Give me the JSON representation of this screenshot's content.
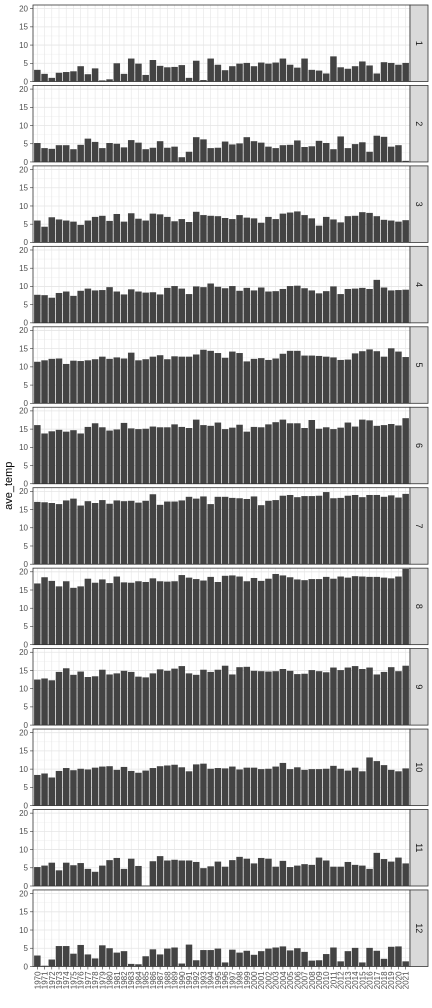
{
  "chart_data": {
    "type": "bar",
    "layout": "facet_grid rows by month",
    "ylabel": "ave_temp",
    "xlabel": "",
    "ylim": [
      0,
      21
    ],
    "y_ticks": [
      0,
      5,
      10,
      15,
      20
    ],
    "years": [
      1970,
      1971,
      1972,
      1973,
      1974,
      1975,
      1976,
      1977,
      1978,
      1979,
      1980,
      1981,
      1982,
      1983,
      1984,
      1985,
      1986,
      1987,
      1988,
      1989,
      1990,
      1991,
      1992,
      1993,
      1994,
      1995,
      1996,
      1997,
      1998,
      1999,
      2000,
      2001,
      2002,
      2003,
      2004,
      2005,
      2006,
      2007,
      2008,
      2009,
      2010,
      2011,
      2012,
      2013,
      2014,
      2015,
      2016,
      2017,
      2018,
      2019,
      2020,
      2021
    ],
    "x_tick_labels": [
      "1970",
      "1972",
      "1974",
      "1976",
      "1978",
      "1980",
      "1982",
      "1984",
      "1986",
      "1988",
      "1990",
      "1992",
      "1994",
      "1996",
      "1998",
      "2000",
      "2002",
      "2004",
      "2006",
      "2008",
      "2010",
      "2012",
      "2014",
      "2016",
      "2018",
      "2020",
      "1971",
      "1973",
      "1975",
      "1977",
      "1979",
      "1981",
      "1983",
      "1985",
      "1987",
      "1989",
      "1991",
      "1993",
      "1995",
      "1997",
      "1999",
      "2001",
      "2003",
      "2005",
      "2007",
      "2009",
      "2011",
      "2013",
      "2015",
      "2017",
      "2019",
      "2021"
    ],
    "grid": true,
    "panels": [
      {
        "label": "1",
        "values": [
          3.2,
          2.1,
          1.0,
          2.4,
          2.6,
          2.8,
          4.2,
          2.0,
          3.6,
          0.3,
          0.6,
          5.0,
          2.1,
          6.3,
          4.9,
          1.8,
          5.9,
          4.3,
          3.9,
          4.0,
          4.5,
          1.0,
          5.7,
          0.4,
          6.3,
          4.6,
          3.1,
          4.2,
          4.9,
          5.1,
          4.2,
          5.2,
          4.9,
          5.2,
          6.3,
          4.6,
          3.8,
          6.3,
          3.2,
          3.0,
          2.2,
          6.9,
          3.9,
          3.5,
          4.2,
          5.5,
          4.4,
          2.2,
          5.3,
          5.1,
          4.6,
          5.1
        ]
      },
      {
        "label": "2",
        "values": [
          5.2,
          3.8,
          3.6,
          4.6,
          4.6,
          3.5,
          4.7,
          6.4,
          5.5,
          3.8,
          5.2,
          5.0,
          4.0,
          6.0,
          5.3,
          3.5,
          3.9,
          5.7,
          3.9,
          4.2,
          1.3,
          2.8,
          6.8,
          6.2,
          3.8,
          3.9,
          5.6,
          4.8,
          5.1,
          6.8,
          5.7,
          5.3,
          4.2,
          3.8,
          4.6,
          4.7,
          5.9,
          4.1,
          4.3,
          5.8,
          5.2,
          3.5,
          7.0,
          3.8,
          4.9,
          5.4,
          2.8,
          7.2,
          6.9,
          4.2,
          4.6,
          0.3
        ]
      },
      {
        "label": "3",
        "values": [
          6.0,
          4.3,
          6.9,
          6.3,
          6.0,
          5.7,
          4.8,
          6.0,
          7.0,
          7.3,
          5.9,
          7.8,
          5.7,
          8.0,
          6.5,
          6.0,
          7.9,
          7.7,
          7.0,
          5.8,
          6.4,
          5.6,
          8.4,
          7.5,
          7.3,
          7.2,
          6.7,
          6.4,
          7.5,
          6.8,
          6.6,
          5.4,
          7.0,
          6.4,
          7.9,
          8.2,
          8.5,
          7.5,
          6.6,
          4.6,
          7.0,
          6.3,
          5.5,
          7.2,
          7.3,
          8.3,
          8.1,
          7.2,
          6.2,
          6.0,
          5.7,
          6.1
        ]
      },
      {
        "label": "4",
        "values": [
          7.7,
          7.6,
          6.9,
          8.2,
          8.6,
          7.4,
          8.8,
          9.4,
          8.9,
          9.0,
          9.8,
          8.6,
          7.8,
          9.2,
          8.6,
          8.3,
          8.4,
          7.8,
          9.6,
          10.1,
          9.4,
          7.9,
          10.0,
          9.8,
          10.8,
          9.9,
          9.5,
          10.1,
          8.8,
          9.6,
          8.9,
          9.7,
          8.6,
          8.7,
          9.3,
          10.1,
          10.2,
          9.5,
          8.9,
          8.1,
          8.7,
          10.0,
          7.9,
          9.3,
          9.4,
          9.6,
          9.3,
          11.8,
          9.7,
          8.9,
          9.0,
          9.1
        ]
      },
      {
        "label": "5",
        "values": [
          11.4,
          11.8,
          12.2,
          12.3,
          10.8,
          11.7,
          11.6,
          11.8,
          12.1,
          12.8,
          12.2,
          12.6,
          12.3,
          13.9,
          11.8,
          12.1,
          12.8,
          13.2,
          12.1,
          12.9,
          12.8,
          12.8,
          13.4,
          14.7,
          14.4,
          13.8,
          12.5,
          14.2,
          13.8,
          11.5,
          12.2,
          12.4,
          11.9,
          12.3,
          13.6,
          14.4,
          14.4,
          13.1,
          13.1,
          13.0,
          12.8,
          12.6,
          11.9,
          12.0,
          13.7,
          14.3,
          14.8,
          14.3,
          12.8,
          15.1,
          14.2,
          12.7
        ]
      },
      {
        "label": "6",
        "values": [
          16.1,
          13.8,
          14.4,
          14.8,
          14.3,
          14.7,
          13.8,
          15.6,
          16.6,
          15.5,
          14.6,
          14.9,
          16.7,
          15.2,
          15.0,
          15.1,
          15.7,
          15.5,
          15.5,
          16.3,
          15.6,
          15.3,
          17.6,
          16.1,
          15.9,
          16.8,
          15.0,
          15.4,
          16.2,
          14.3,
          15.6,
          15.5,
          16.3,
          16.9,
          17.6,
          16.6,
          16.6,
          15.3,
          17.5,
          15.1,
          15.5,
          15.0,
          15.4,
          16.8,
          15.7,
          17.6,
          17.4,
          15.9,
          16.1,
          16.4,
          16.0,
          18.0
        ]
      },
      {
        "label": "7",
        "values": [
          17.1,
          17.0,
          16.8,
          16.5,
          17.5,
          18.0,
          16.1,
          17.3,
          16.8,
          17.6,
          16.6,
          17.5,
          17.3,
          17.4,
          16.9,
          17.4,
          19.2,
          16.3,
          17.2,
          17.2,
          17.5,
          18.5,
          18.0,
          18.6,
          16.5,
          18.5,
          18.5,
          18.2,
          18.1,
          17.9,
          18.6,
          16.2,
          17.4,
          17.6,
          18.8,
          19.0,
          18.4,
          18.7,
          18.7,
          18.8,
          19.8,
          18.1,
          18.2,
          18.8,
          19.0,
          18.4,
          19.0,
          19.0,
          18.5,
          18.9,
          18.3,
          19.3
        ]
      },
      {
        "label": "8",
        "values": [
          16.8,
          18.5,
          17.5,
          16.0,
          17.4,
          15.6,
          16.0,
          18.1,
          17.0,
          17.9,
          16.9,
          18.7,
          17.1,
          17.0,
          17.4,
          17.2,
          18.2,
          17.4,
          17.3,
          17.4,
          19.1,
          18.4,
          18.0,
          17.6,
          18.6,
          17.2,
          18.9,
          19.0,
          18.7,
          17.4,
          18.3,
          17.5,
          18.1,
          19.4,
          19.0,
          18.5,
          17.9,
          17.7,
          18.0,
          18.0,
          18.6,
          18.1,
          18.7,
          18.4,
          18.8,
          18.7,
          18.6,
          18.6,
          18.4,
          18.2,
          18.7,
          20.8
        ]
      },
      {
        "label": "9",
        "values": [
          12.5,
          12.8,
          12.3,
          14.6,
          15.6,
          13.8,
          14.7,
          13.2,
          13.4,
          15.2,
          13.9,
          14.2,
          14.9,
          14.6,
          13.3,
          13.1,
          14.2,
          15.3,
          14.9,
          15.5,
          16.2,
          14.2,
          13.8,
          15.2,
          14.6,
          15.2,
          16.3,
          13.9,
          15.9,
          16.0,
          14.9,
          14.8,
          14.7,
          14.8,
          15.4,
          14.9,
          14.0,
          14.1,
          15.1,
          14.8,
          14.5,
          15.8,
          15.1,
          15.8,
          16.2,
          15.4,
          15.8,
          13.9,
          14.6,
          15.9,
          14.8,
          16.3
        ]
      },
      {
        "label": "10",
        "values": [
          8.4,
          8.8,
          7.7,
          9.5,
          10.3,
          9.7,
          10.1,
          9.9,
          10.4,
          10.7,
          10.8,
          9.8,
          10.6,
          9.5,
          9.0,
          9.6,
          10.3,
          10.8,
          11.0,
          11.2,
          10.5,
          9.4,
          11.3,
          11.5,
          10.1,
          10.3,
          10.2,
          10.7,
          9.9,
          10.4,
          10.4,
          10.0,
          10.1,
          10.7,
          11.7,
          10.0,
          10.5,
          9.8,
          10.0,
          10.0,
          10.1,
          10.9,
          10.1,
          9.6,
          10.4,
          9.4,
          13.2,
          12.2,
          11.1,
          9.8,
          9.4,
          10.2
        ]
      },
      {
        "label": "11",
        "values": [
          5.2,
          5.6,
          6.4,
          4.3,
          6.4,
          5.7,
          6.3,
          4.7,
          3.9,
          5.6,
          7.1,
          7.7,
          4.7,
          7.5,
          5.5,
          0.1,
          6.8,
          8.2,
          7.0,
          7.2,
          7.0,
          7.0,
          6.6,
          4.9,
          5.4,
          6.7,
          5.3,
          7.1,
          8.0,
          7.5,
          6.2,
          7.7,
          7.5,
          5.3,
          6.9,
          5.2,
          5.6,
          6.0,
          5.8,
          7.8,
          7.0,
          5.3,
          5.3,
          6.6,
          5.8,
          5.6,
          4.7,
          9.1,
          7.4,
          6.7,
          7.8,
          6.2
        ]
      },
      {
        "label": "12",
        "values": [
          3.0,
          0.2,
          1.9,
          5.6,
          5.6,
          3.5,
          5.9,
          3.3,
          2.2,
          5.8,
          5.0,
          3.8,
          4.2,
          0.7,
          0.6,
          2.8,
          4.7,
          3.3,
          4.9,
          5.2,
          0.8,
          6.0,
          1.7,
          4.5,
          4.5,
          4.9,
          1.1,
          4.6,
          3.8,
          4.3,
          3.2,
          4.2,
          4.9,
          5.2,
          5.5,
          4.4,
          5.0,
          4.0,
          1.6,
          1.7,
          3.4,
          5.2,
          1.4,
          4.2,
          5.1,
          1.1,
          5.1,
          4.3,
          2.1,
          5.4,
          5.5,
          1.4
        ]
      }
    ]
  },
  "colors": {
    "bar": "#434343",
    "panel_border": "#333333",
    "grid_major": "#e5e5e5",
    "grid_minor": "#f2f2f2",
    "strip_fill": "#d9d9d9",
    "tick_text": "#4d4d4d"
  }
}
